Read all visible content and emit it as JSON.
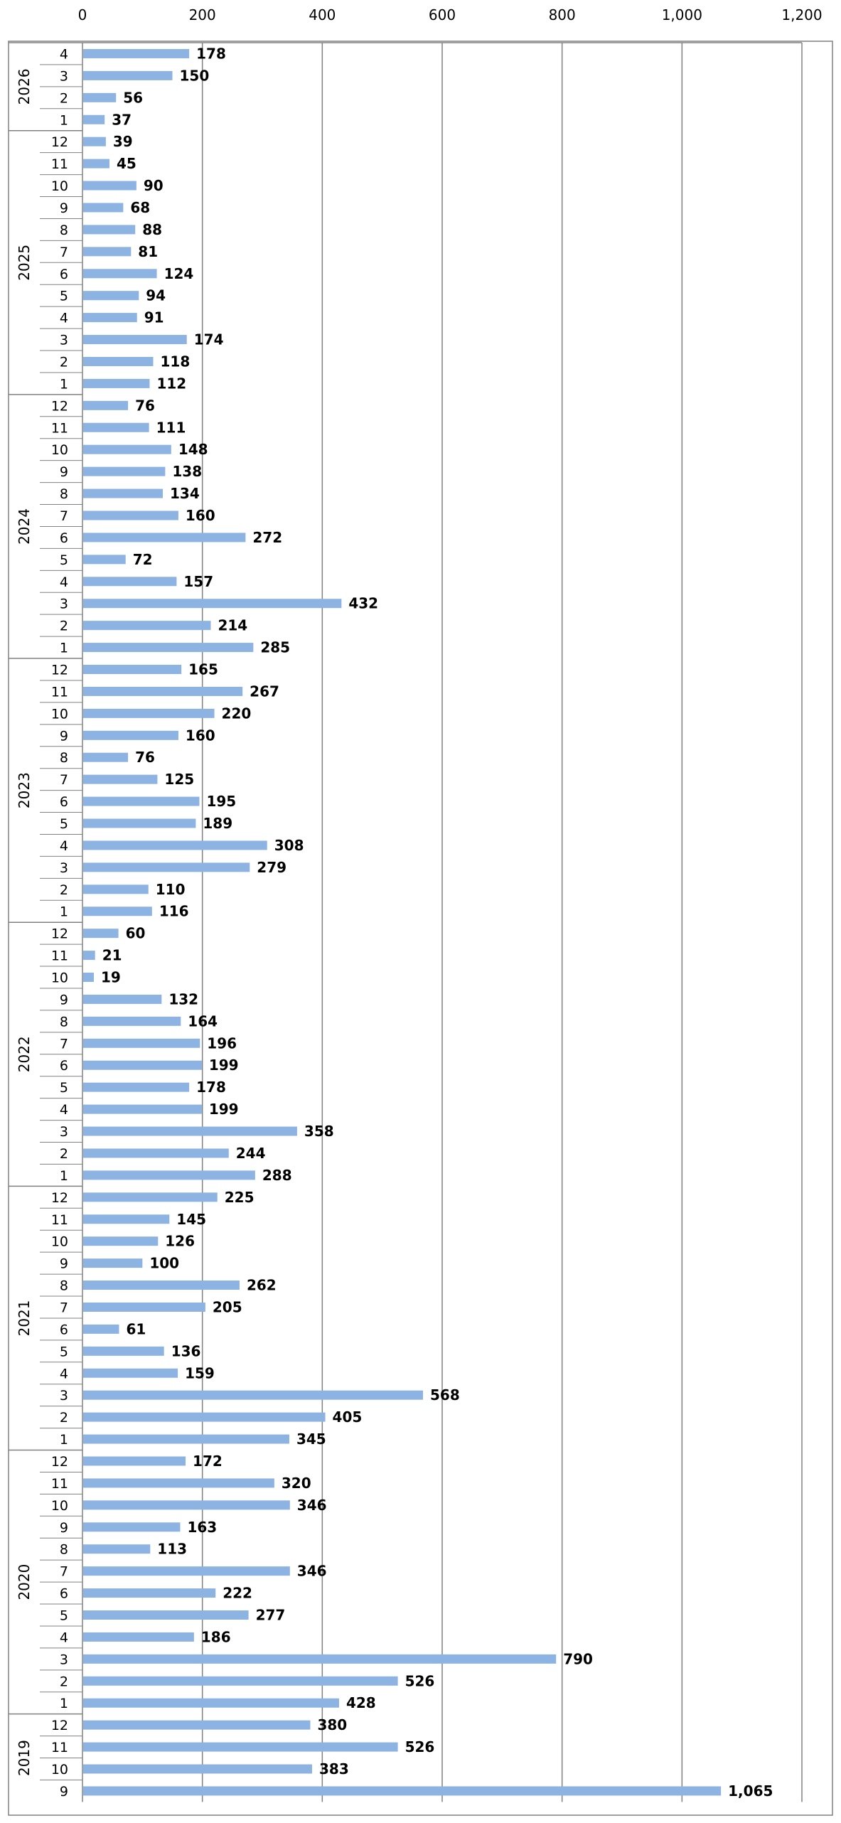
{
  "chart_data": {
    "type": "bar",
    "orientation": "horizontal",
    "title": "",
    "xlabel": "",
    "ylabel": "",
    "xlim": [
      0,
      1200
    ],
    "x_ticks": [
      "0",
      "200",
      "400",
      "600",
      "800",
      "1,000",
      "1,200"
    ],
    "x_tick_values": [
      0,
      200,
      400,
      600,
      800,
      1000,
      1200
    ],
    "x_axis_position": "top",
    "grid": true,
    "bar_color": "#8DB3E2",
    "groups": [
      {
        "year": "2026",
        "months": [
          "4",
          "3",
          "2",
          "1"
        ],
        "values": [
          178,
          150,
          56,
          37
        ]
      },
      {
        "year": "2025",
        "months": [
          "12",
          "11",
          "10",
          "9",
          "8",
          "7",
          "6",
          "5",
          "4",
          "3",
          "2",
          "1"
        ],
        "values": [
          39,
          45,
          90,
          68,
          88,
          81,
          124,
          94,
          91,
          174,
          118,
          112
        ]
      },
      {
        "year": "2024",
        "months": [
          "12",
          "11",
          "10",
          "9",
          "8",
          "7",
          "6",
          "5",
          "4",
          "3",
          "2",
          "1"
        ],
        "values": [
          76,
          111,
          148,
          138,
          134,
          160,
          272,
          72,
          157,
          432,
          214,
          285
        ]
      },
      {
        "year": "2023",
        "months": [
          "12",
          "11",
          "10",
          "9",
          "8",
          "7",
          "6",
          "5",
          "4",
          "3",
          "2",
          "1"
        ],
        "values": [
          165,
          267,
          220,
          160,
          76,
          125,
          195,
          189,
          308,
          279,
          110,
          116
        ]
      },
      {
        "year": "2022",
        "months": [
          "12",
          "11",
          "10",
          "9",
          "8",
          "7",
          "6",
          "5",
          "4",
          "3",
          "2",
          "1"
        ],
        "values": [
          60,
          21,
          19,
          132,
          164,
          196,
          199,
          178,
          199,
          358,
          244,
          288
        ]
      },
      {
        "year": "2021",
        "months": [
          "12",
          "11",
          "10",
          "9",
          "8",
          "7",
          "6",
          "5",
          "4",
          "3",
          "2",
          "1"
        ],
        "values": [
          225,
          145,
          126,
          100,
          262,
          205,
          61,
          136,
          159,
          568,
          405,
          345
        ]
      },
      {
        "year": "2020",
        "months": [
          "12",
          "11",
          "10",
          "9",
          "8",
          "7",
          "6",
          "5",
          "4",
          "3",
          "2",
          "1"
        ],
        "values": [
          172,
          320,
          346,
          163,
          113,
          346,
          222,
          277,
          186,
          790,
          526,
          428
        ]
      },
      {
        "year": "2019",
        "months": [
          "12",
          "11",
          "10",
          "9"
        ],
        "values": [
          380,
          526,
          383,
          1065
        ]
      }
    ]
  }
}
